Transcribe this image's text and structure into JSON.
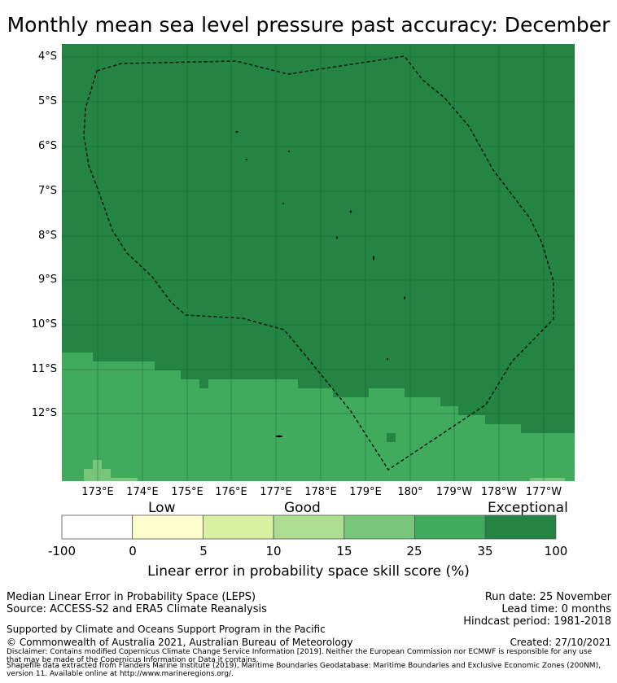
{
  "title": "Monthly mean sea level pressure past accuracy: December",
  "map": {
    "y_ticks": [
      "4°S",
      "5°S",
      "6°S",
      "7°S",
      "8°S",
      "9°S",
      "10°S",
      "11°S",
      "12°S"
    ],
    "x_ticks": [
      "173°E",
      "174°E",
      "175°E",
      "176°E",
      "177°E",
      "178°E",
      "179°E",
      "180°",
      "179°W",
      "178°W",
      "177°W"
    ]
  },
  "legend": {
    "categories": [
      "Low",
      "Good",
      "Exceptional"
    ],
    "bounds": [
      "-100",
      "0",
      "5",
      "10",
      "15",
      "25",
      "35",
      "100"
    ],
    "colors": [
      "#ffffff",
      "#ffffcc",
      "#d9f0a3",
      "#addd8e",
      "#78c679",
      "#41ab5d",
      "#238443"
    ],
    "label": "Linear error in probability space skill score (%)"
  },
  "footer": {
    "line1": "Median Linear Error in Probability Space (LEPS)",
    "line2": "Source: ACCESS-S2 and ERA5 Climate Reanalysis",
    "supported": "Supported by Climate and Oceans Support Program in the Pacific",
    "copyright": "© Commonwealth of Australia 2021, Australian Bureau of Meteorology",
    "run_date": "Run date: 25 November",
    "lead_time": "Lead time: 0 months",
    "hindcast": "Hindcast period: 1981-2018",
    "created": "Created: 27/10/2021",
    "disclaimer1": "Disclaimer: Contains modified Copernicus Climate Change Service Information [2019]. Neither the European Commission nor ECMWF is responsible for any use",
    "disclaimer2": "that may be made of the Copernicus Information or Data it contains.",
    "shapefile1": "Shapefile data extracted from Flanders Marine Institute (2019), Maritime Boundaries Geodatabase: Maritime Boundaries and Exclusive Economic Zones (200NM),",
    "shapefile2": "version 11. Available online at http://www.marineregions.org/."
  }
}
